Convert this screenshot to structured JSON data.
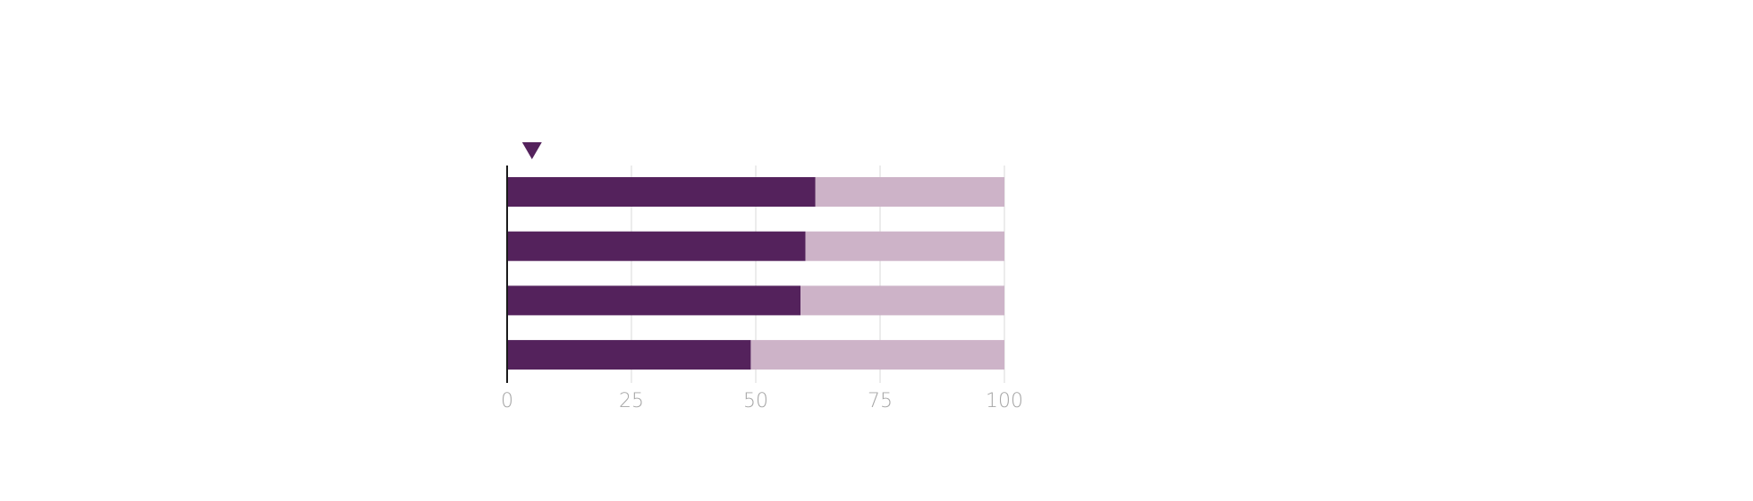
{
  "chart_data": {
    "type": "bar",
    "orientation": "horizontal",
    "stacked": true,
    "categories": [
      "",
      "",
      "",
      ""
    ],
    "series": [
      {
        "values": [
          62,
          60,
          59,
          49
        ]
      },
      {
        "values": [
          38,
          40,
          41,
          51
        ]
      }
    ],
    "xlim": [
      0,
      100
    ],
    "x_ticks": [
      "0",
      "25",
      "50",
      "75",
      "100"
    ],
    "grid": true,
    "colors": {
      "primary": "#54225c",
      "secondary": "#cdb3c8",
      "grid": "#d9d9d9",
      "axis": "#1a1a1a",
      "tick_text": "#a6a6a6"
    },
    "marker": {
      "shape": "triangle-down",
      "value": 5
    }
  }
}
